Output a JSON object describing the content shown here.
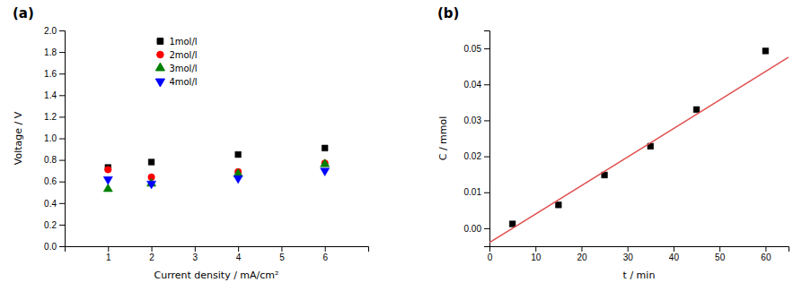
{
  "chart_data": [
    {
      "type": "scatter",
      "title": "(a)",
      "x_label": "Current density / mA/cm²",
      "y_label": "Voltage / V",
      "xlim": [
        0,
        7
      ],
      "ylim": [
        0.0,
        2.0
      ],
      "xticks": [
        1,
        2,
        3,
        4,
        5,
        6
      ],
      "yticks": [
        {
          "value": 0.0,
          "label": "0.0"
        },
        0.2,
        0.4,
        0.6,
        0.8,
        {
          "value": 1.0,
          "label": "1.0"
        },
        1.2,
        1.4,
        1.6,
        1.8,
        {
          "value": 2.0,
          "label": "2.0"
        }
      ],
      "grid": false,
      "legend": "upper left",
      "series": [
        {
          "name": "1mol/l",
          "color": "black",
          "marker": "square",
          "x": [
            1,
            2,
            4,
            6
          ],
          "values": [
            0.73,
            0.78,
            0.85,
            0.91
          ]
        },
        {
          "name": "2mol/l",
          "color": "red",
          "marker": "circle",
          "x": [
            1,
            2,
            4,
            6
          ],
          "values": [
            0.71,
            0.64,
            0.69,
            0.77
          ]
        },
        {
          "name": "3mol/l",
          "color": "green",
          "marker": "triangle-up",
          "x": [
            1,
            2,
            4,
            6
          ],
          "values": [
            0.53,
            0.58,
            0.67,
            0.76
          ]
        },
        {
          "name": "4mol/l",
          "color": "blue",
          "marker": "triangle-down",
          "x": [
            1,
            2,
            4,
            6
          ],
          "values": [
            0.62,
            0.58,
            0.63,
            0.7
          ]
        }
      ]
    },
    {
      "type": "scatter",
      "title": "(b)",
      "x_label": "t / min",
      "y_label": "C / mmol",
      "xlim": [
        0,
        65
      ],
      "ylim": [
        -0.005,
        0.055
      ],
      "xticks": [
        0,
        10,
        20,
        30,
        40,
        50,
        60
      ],
      "yticks": [
        {
          "value": 0.0,
          "label": "0.00"
        },
        {
          "value": 0.01,
          "label": "0.01"
        },
        {
          "value": 0.02,
          "label": "0.02"
        },
        {
          "value": 0.03,
          "label": "0.03"
        },
        {
          "value": 0.04,
          "label": "0.04"
        },
        {
          "value": 0.05,
          "label": "0.05"
        }
      ],
      "grid": false,
      "series": [
        {
          "type": "scatter",
          "color": "black",
          "marker": "square",
          "x": [
            5,
            15,
            25,
            35,
            45,
            60
          ],
          "values": [
            0.0012,
            0.0065,
            0.0148,
            0.0228,
            0.033,
            0.0493
          ]
        },
        {
          "type": "line",
          "color": "#e05050",
          "x": [
            0,
            65
          ],
          "values": [
            -0.004,
            0.047545
          ]
        }
      ]
    }
  ]
}
